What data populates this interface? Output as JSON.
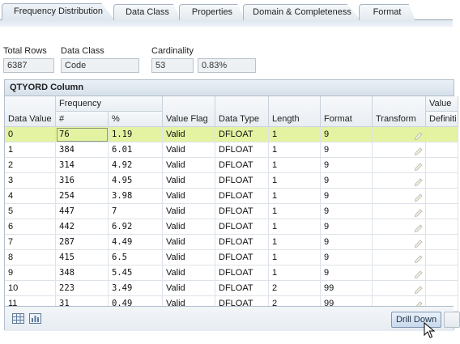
{
  "tabs": [
    {
      "label": "Frequency Distribution",
      "active": true
    },
    {
      "label": "Data Class",
      "active": false
    },
    {
      "label": "Properties",
      "active": false
    },
    {
      "label": "Domain & Completeness",
      "active": false
    },
    {
      "label": "Format",
      "active": false
    }
  ],
  "summary": {
    "total_rows_label": "Total Rows",
    "total_rows_value": "6387",
    "data_class_label": "Data Class",
    "data_class_value": "Code",
    "cardinality_label": "Cardinality",
    "cardinality_count": "53",
    "cardinality_percent": "0.83%"
  },
  "panel": {
    "title": "QTYORD Column"
  },
  "table": {
    "headers": {
      "data_value": "Data Value",
      "frequency": "Frequency",
      "count": "#",
      "percent": "%",
      "value_flag": "Value Flag",
      "data_type": "Data Type",
      "length": "Length",
      "format": "Format",
      "transform": "Transform",
      "value_top": "Value",
      "definition": "Definiti"
    },
    "rows": [
      {
        "value": "0",
        "count": "76",
        "percent": "1.19",
        "flag": "Valid",
        "type": "DFLOAT",
        "length": "1",
        "format": "9"
      },
      {
        "value": "1",
        "count": "384",
        "percent": "6.01",
        "flag": "Valid",
        "type": "DFLOAT",
        "length": "1",
        "format": "9"
      },
      {
        "value": "2",
        "count": "314",
        "percent": "4.92",
        "flag": "Valid",
        "type": "DFLOAT",
        "length": "1",
        "format": "9"
      },
      {
        "value": "3",
        "count": "316",
        "percent": "4.95",
        "flag": "Valid",
        "type": "DFLOAT",
        "length": "1",
        "format": "9"
      },
      {
        "value": "4",
        "count": "254",
        "percent": "3.98",
        "flag": "Valid",
        "type": "DFLOAT",
        "length": "1",
        "format": "9"
      },
      {
        "value": "5",
        "count": "447",
        "percent": "7",
        "flag": "Valid",
        "type": "DFLOAT",
        "length": "1",
        "format": "9"
      },
      {
        "value": "6",
        "count": "442",
        "percent": "6.92",
        "flag": "Valid",
        "type": "DFLOAT",
        "length": "1",
        "format": "9"
      },
      {
        "value": "7",
        "count": "287",
        "percent": "4.49",
        "flag": "Valid",
        "type": "DFLOAT",
        "length": "1",
        "format": "9"
      },
      {
        "value": "8",
        "count": "415",
        "percent": "6.5",
        "flag": "Valid",
        "type": "DFLOAT",
        "length": "1",
        "format": "9"
      },
      {
        "value": "9",
        "count": "348",
        "percent": "5.45",
        "flag": "Valid",
        "type": "DFLOAT",
        "length": "1",
        "format": "9"
      },
      {
        "value": "10",
        "count": "223",
        "percent": "3.49",
        "flag": "Valid",
        "type": "DFLOAT",
        "length": "2",
        "format": "99"
      },
      {
        "value": "11",
        "count": "31",
        "percent": "0.49",
        "flag": "Valid",
        "type": "DFLOAT",
        "length": "2",
        "format": "99"
      }
    ],
    "selected_row": 0,
    "transform_icon": "pencil-icon"
  },
  "footer": {
    "drill_down_label": "Drill Down",
    "table_view_icon": "table-view-icon",
    "chart_view_icon": "chart-view-icon"
  },
  "colors": {
    "selected_row": "#e3f3a2",
    "header_bg": "#e9eef3",
    "accent_border": "#7f97b3"
  }
}
